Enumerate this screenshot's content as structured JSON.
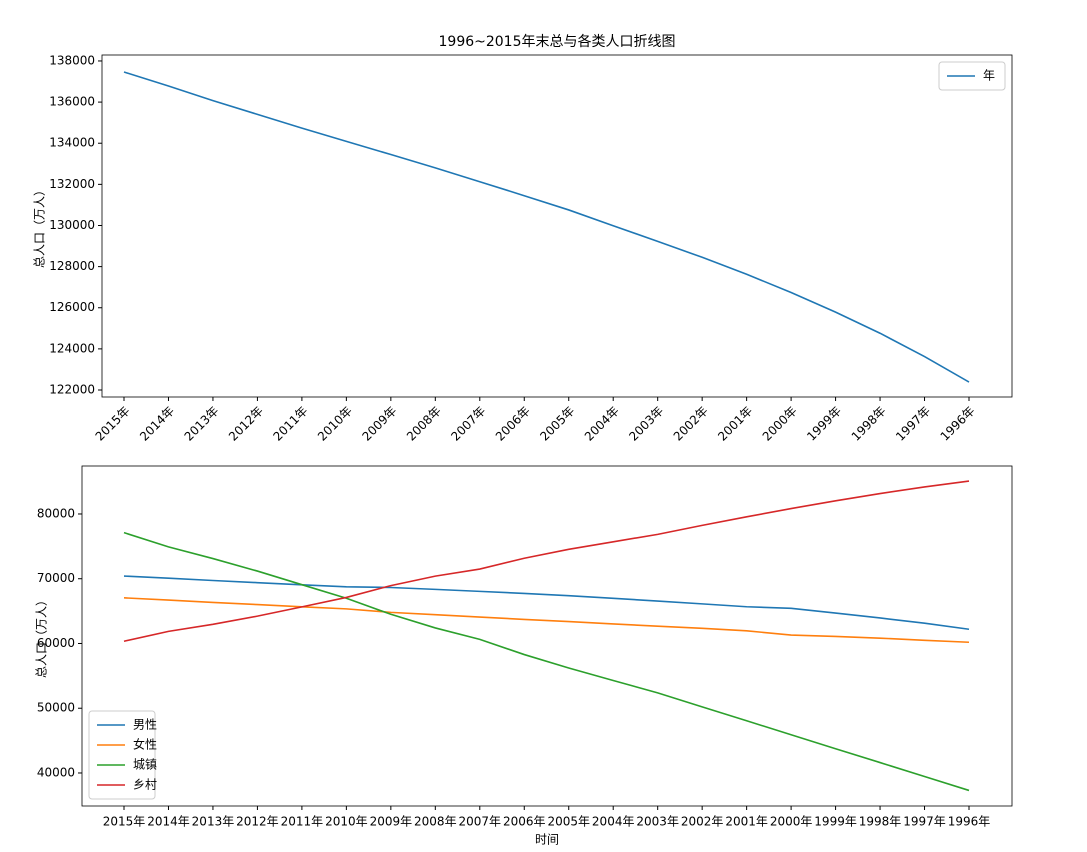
{
  "chart_data": [
    {
      "type": "line",
      "title": "1996~2015年末总与各类人口折线图",
      "ylabel": "总人口（万人）",
      "categories": [
        "2015年",
        "2014年",
        "2013年",
        "2012年",
        "2011年",
        "2010年",
        "2009年",
        "2008年",
        "2007年",
        "2006年",
        "2005年",
        "2004年",
        "2003年",
        "2002年",
        "2001年",
        "2000年",
        "1999年",
        "1998年",
        "1997年",
        "1996年"
      ],
      "series": [
        {
          "name": "年",
          "color": "#1f77b4",
          "values": [
            137462,
            136782,
            136072,
            135404,
            134735,
            134091,
            133450,
            132802,
            132129,
            131448,
            130756,
            129988,
            129227,
            128453,
            127627,
            126743,
            125786,
            124761,
            123626,
            122389
          ]
        }
      ],
      "ylim": [
        121660,
        138290
      ],
      "yticks": [
        122000,
        124000,
        126000,
        128000,
        130000,
        132000,
        134000,
        136000,
        138000
      ],
      "legend": "upper right"
    },
    {
      "type": "line",
      "xlabel": "时间",
      "ylabel": "总人口（万人）",
      "categories": [
        "2015年",
        "2014年",
        "2013年",
        "2012年",
        "2011年",
        "2010年",
        "2009年",
        "2008年",
        "2007年",
        "2006年",
        "2005年",
        "2004年",
        "2003年",
        "2002年",
        "2001年",
        "2000年",
        "1999年",
        "1998年",
        "1997年",
        "1996年"
      ],
      "series": [
        {
          "name": "男性",
          "color": "#1f77b4",
          "values": [
            70414,
            70079,
            69728,
            69395,
            69068,
            68748,
            68647,
            68357,
            68048,
            67728,
            67375,
            66976,
            66556,
            66115,
            65672,
            65437,
            64692,
            63940,
            63131,
            62200
          ]
        },
        {
          "name": "女性",
          "color": "#ff7f0e",
          "values": [
            67048,
            66703,
            66344,
            66009,
            65667,
            65343,
            64803,
            64445,
            64081,
            63720,
            63381,
            63012,
            62671,
            62338,
            61955,
            61306,
            61094,
            60821,
            60495,
            60189
          ]
        },
        {
          "name": "城镇",
          "color": "#2ca02c",
          "values": [
            77116,
            74916,
            73111,
            71182,
            69079,
            66978,
            64512,
            62403,
            60633,
            58288,
            56212,
            54283,
            52376,
            50212,
            48064,
            45906,
            43748,
            41608,
            39449,
            37304
          ]
        },
        {
          "name": "乡村",
          "color": "#d62728",
          "values": [
            60346,
            61866,
            62961,
            64222,
            65656,
            67113,
            68938,
            70399,
            71496,
            73160,
            74544,
            75705,
            76851,
            78241,
            79563,
            80837,
            82038,
            83153,
            84177,
            85085
          ]
        }
      ],
      "ylim": [
        34900,
        87410
      ],
      "yticks": [
        40000,
        50000,
        60000,
        70000,
        80000
      ],
      "legend": "lower left"
    }
  ]
}
